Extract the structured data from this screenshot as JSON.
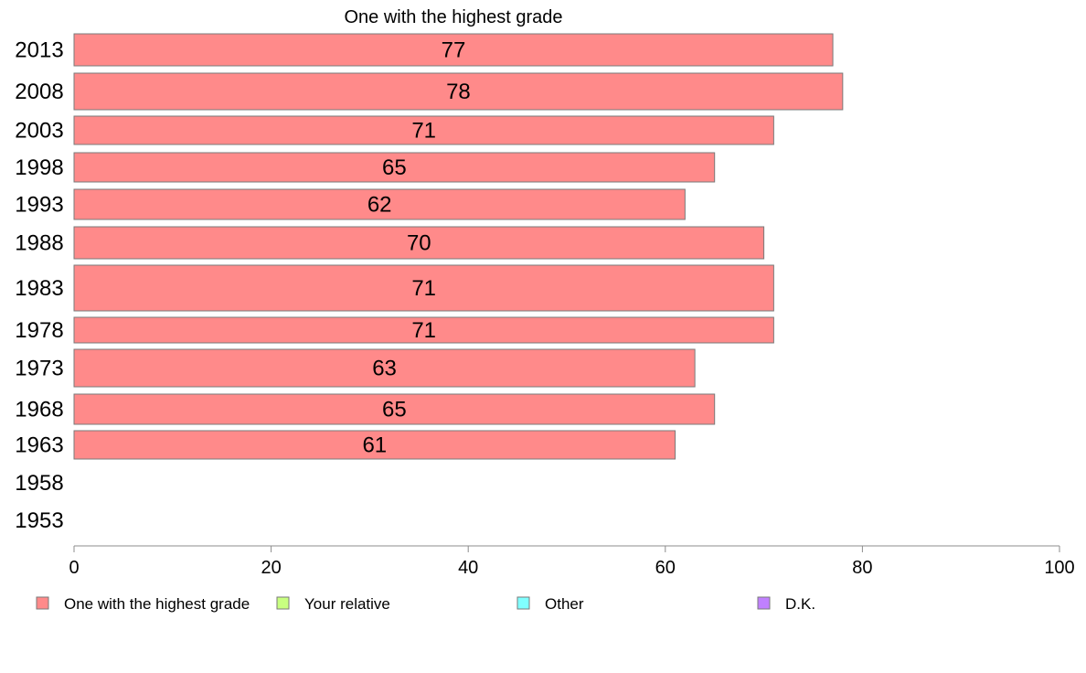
{
  "chart_data": {
    "type": "bar",
    "orientation": "horizontal",
    "title": "One with the highest grade",
    "categories": [
      "2013",
      "2008",
      "2003",
      "1998",
      "1993",
      "1988",
      "1983",
      "1978",
      "1973",
      "1968",
      "1963",
      "1958",
      "1953"
    ],
    "series": [
      {
        "name": "One with the highest grade",
        "color": "#ff8a8a",
        "values": [
          77,
          78,
          71,
          65,
          62,
          70,
          71,
          71,
          63,
          65,
          61,
          null,
          null
        ],
        "labels": [
          "77",
          "78",
          "71",
          "65",
          "62",
          "70",
          "71",
          "71",
          "63",
          "65",
          "61",
          "",
          ""
        ]
      }
    ],
    "xlim": [
      0,
      100
    ],
    "xticks": [
      0,
      20,
      40,
      60,
      80,
      100
    ],
    "xtick_labels": [
      "0",
      "20",
      "40",
      "60",
      "80",
      "100"
    ],
    "grid": false,
    "legend": {
      "position": "bottom",
      "items": [
        {
          "label": "One with the highest grade",
          "color": "#ff8a8a"
        },
        {
          "label": "Your relative",
          "color": "#c8ff80"
        },
        {
          "label": "Other",
          "color": "#80ffff"
        },
        {
          "label": "D.K.",
          "color": "#c080ff"
        }
      ]
    }
  }
}
